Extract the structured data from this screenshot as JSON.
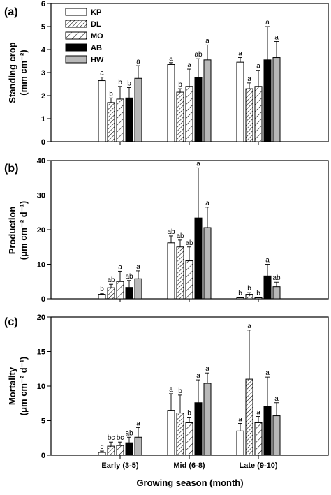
{
  "figure": {
    "xlabel": "Growing season (month)"
  },
  "legend": [
    {
      "name": "KP",
      "fill": "#ffffff",
      "pattern": null
    },
    {
      "name": "DL",
      "fill": "#ffffff",
      "pattern": "dense-hatch"
    },
    {
      "name": "MO",
      "fill": "#ffffff",
      "pattern": "sparse-hatch"
    },
    {
      "name": "AB",
      "fill": "#000000",
      "pattern": null
    },
    {
      "name": "HW",
      "fill": "#b8b8b8",
      "pattern": null
    }
  ],
  "chart_data": [
    {
      "type": "bar",
      "panel": "(a)",
      "ylabel_line1": "Standing crop",
      "ylabel_line2": "(mm cm⁻²)",
      "ylim": [
        0,
        6
      ],
      "yticks": [
        0,
        1,
        2,
        3,
        4,
        5,
        6
      ],
      "categories": [
        "Early (3-5)",
        "Mid (6-8)",
        "Late (9-10)"
      ],
      "series": [
        {
          "name": "KP",
          "values": [
            2.65,
            3.35,
            3.45
          ],
          "errors": [
            0.15,
            0.08,
            0.2
          ],
          "labels": [
            "a",
            "a",
            "a"
          ]
        },
        {
          "name": "DL",
          "values": [
            1.7,
            2.15,
            2.3
          ],
          "errors": [
            0.2,
            0.15,
            0.25
          ],
          "labels": [
            "b",
            "b",
            "a"
          ]
        },
        {
          "name": "MO",
          "values": [
            1.85,
            2.4,
            2.4
          ],
          "errors": [
            0.55,
            0.75,
            0.7
          ],
          "labels": [
            "b",
            "a",
            "a"
          ]
        },
        {
          "name": "AB",
          "values": [
            1.9,
            2.8,
            3.55
          ],
          "errors": [
            0.45,
            0.8,
            1.45
          ],
          "labels": [
            "b",
            "ab",
            "a"
          ]
        },
        {
          "name": "HW",
          "values": [
            2.75,
            3.55,
            3.65
          ],
          "errors": [
            0.55,
            0.65,
            0.7
          ],
          "labels": [
            "a",
            "a",
            "a"
          ]
        }
      ]
    },
    {
      "type": "bar",
      "panel": "(b)",
      "ylabel_line1": "Production",
      "ylabel_line2": "(μm cm⁻² d⁻¹)",
      "ylim": [
        0,
        40
      ],
      "yticks": [
        0,
        10,
        20,
        30,
        40
      ],
      "categories": [
        "Early (3-5)",
        "Mid (6-8)",
        "Late (9-10)"
      ],
      "series": [
        {
          "name": "KP",
          "values": [
            1.3,
            16.2,
            0.3
          ],
          "errors": [
            0.3,
            2.0,
            0.1
          ],
          "labels": [
            "b",
            "ab",
            "b"
          ]
        },
        {
          "name": "DL",
          "values": [
            3.2,
            15.0,
            1.3
          ],
          "errors": [
            1.0,
            2.0,
            0.5
          ],
          "labels": [
            "ab",
            "ab",
            "b"
          ]
        },
        {
          "name": "MO",
          "values": [
            5.0,
            11.0,
            0.3
          ],
          "errors": [
            3.0,
            4.0,
            0.1
          ],
          "labels": [
            "a",
            "ab",
            "b"
          ]
        },
        {
          "name": "AB",
          "values": [
            3.3,
            23.4,
            6.6
          ],
          "errors": [
            2.0,
            14.5,
            3.4
          ],
          "labels": [
            "ab",
            "a",
            "a"
          ]
        },
        {
          "name": "HW",
          "values": [
            5.8,
            20.6,
            3.5
          ],
          "errors": [
            2.3,
            5.9,
            1.3
          ],
          "labels": [
            "a",
            "a",
            "ab"
          ]
        }
      ]
    },
    {
      "type": "bar",
      "panel": "(c)",
      "ylabel_line1": "Mortality",
      "ylabel_line2": "(μm cm⁻² d⁻¹)",
      "ylim": [
        0,
        20
      ],
      "yticks": [
        0,
        5,
        10,
        15,
        20
      ],
      "categories": [
        "Early (3-5)",
        "Mid (6-8)",
        "Late (9-10)"
      ],
      "series": [
        {
          "name": "KP",
          "values": [
            0.4,
            6.5,
            3.5
          ],
          "errors": [
            0.2,
            2.4,
            1.1
          ],
          "labels": [
            "c",
            "a",
            "a"
          ]
        },
        {
          "name": "DL",
          "values": [
            1.3,
            6.1,
            11.0
          ],
          "errors": [
            0.6,
            2.6,
            7.1
          ],
          "labels": [
            "bc",
            "b",
            "a"
          ]
        },
        {
          "name": "MO",
          "values": [
            1.4,
            4.7,
            4.7
          ],
          "errors": [
            0.5,
            0.8,
            0.9
          ],
          "labels": [
            "bc",
            "b",
            "a"
          ]
        },
        {
          "name": "AB",
          "values": [
            1.8,
            7.6,
            7.1
          ],
          "errors": [
            0.8,
            3.3,
            4.2
          ],
          "labels": [
            "ab",
            "a",
            "a"
          ]
        },
        {
          "name": "HW",
          "values": [
            2.6,
            10.4,
            5.7
          ],
          "errors": [
            1.4,
            1.5,
            1.9
          ],
          "labels": [
            "a",
            "a",
            "a"
          ]
        }
      ]
    }
  ]
}
